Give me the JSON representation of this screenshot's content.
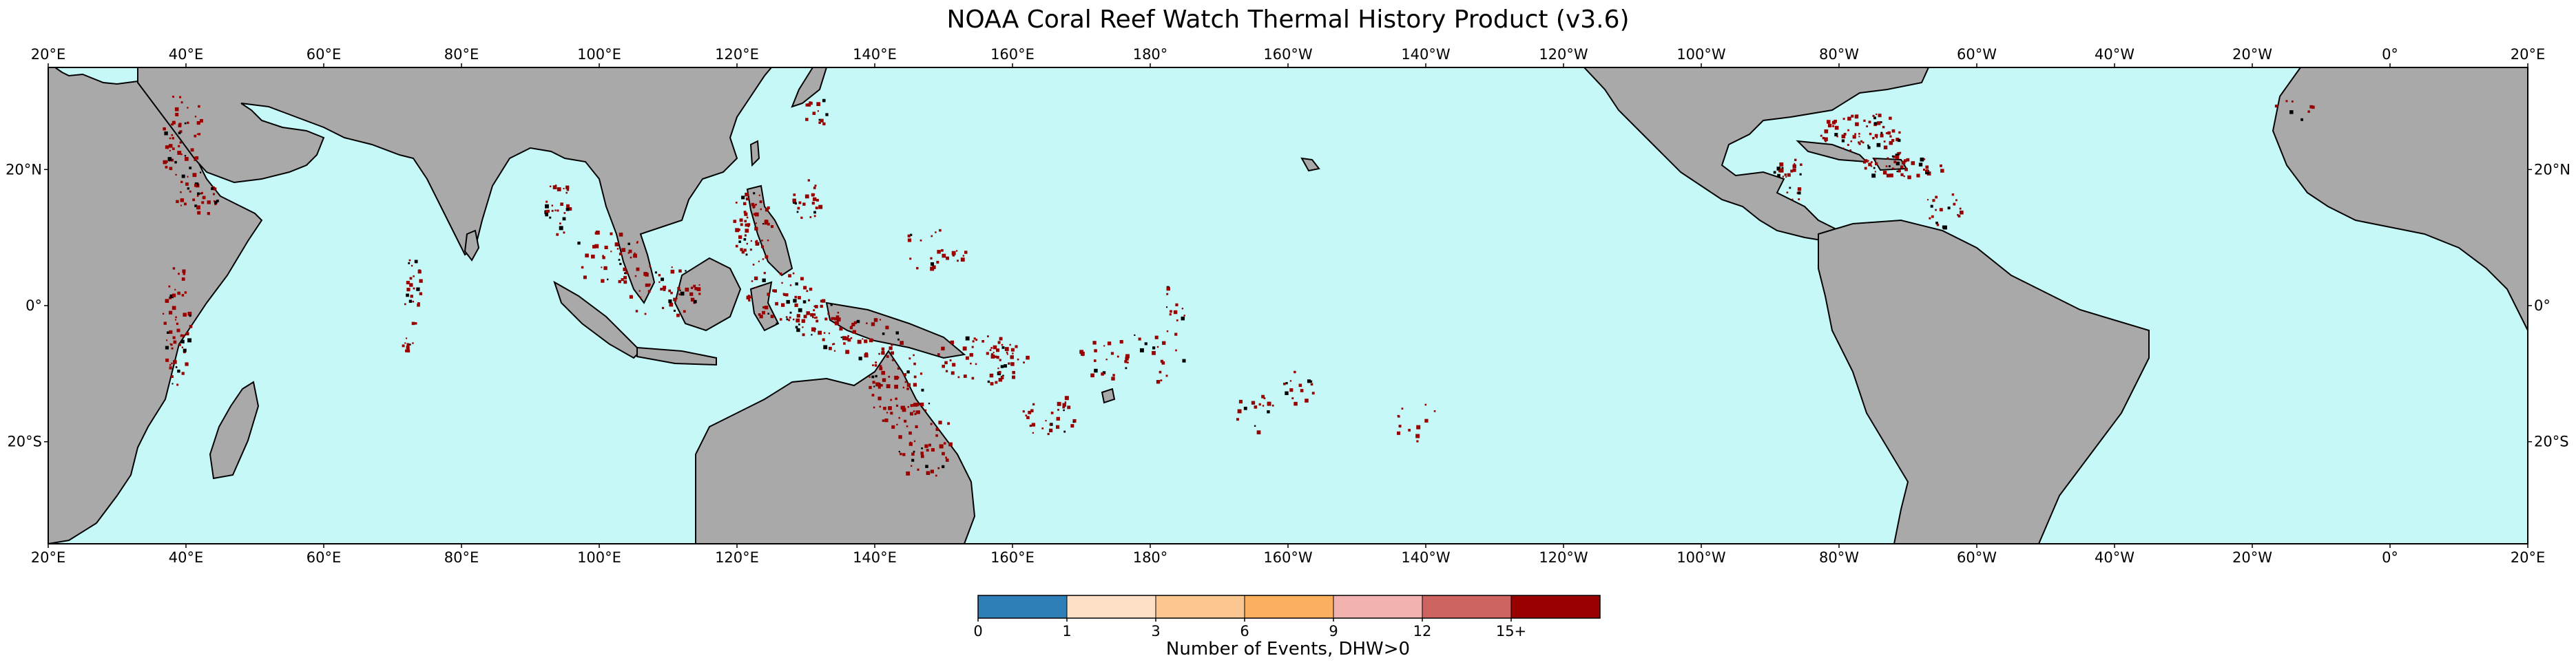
{
  "title": "NOAA Coral Reef Watch Thermal History Product (v3.6)",
  "map": {
    "projection": "Plate Carree, central longitude 160°E",
    "extent": {
      "lon_start": "20°E",
      "lon_end": "20°E",
      "lat_min": -35,
      "lat_max": 35
    },
    "ocean_color": "#c6f8f8",
    "land_color": "#a9a9a9",
    "coastline_color": "#000000",
    "reef_high_color": "#990000",
    "lon_ticks": [
      "20°E",
      "40°E",
      "60°E",
      "80°E",
      "100°E",
      "120°E",
      "140°E",
      "160°E",
      "180°",
      "160°W",
      "140°W",
      "120°W",
      "100°W",
      "80°W",
      "60°W",
      "40°W",
      "20°W",
      "0°",
      "20°E"
    ],
    "lat_ticks": [
      "20°N",
      "0°",
      "20°S"
    ]
  },
  "colorbar": {
    "label": "Number of Events, DHW>0",
    "tick_labels": [
      "0",
      "1",
      "3",
      "6",
      "9",
      "12",
      "15+"
    ],
    "colors": [
      "#2e7fb8",
      "#fde0c5",
      "#fcc690",
      "#fbb060",
      "#f2b3b0",
      "#cd6462",
      "#990000"
    ]
  }
}
